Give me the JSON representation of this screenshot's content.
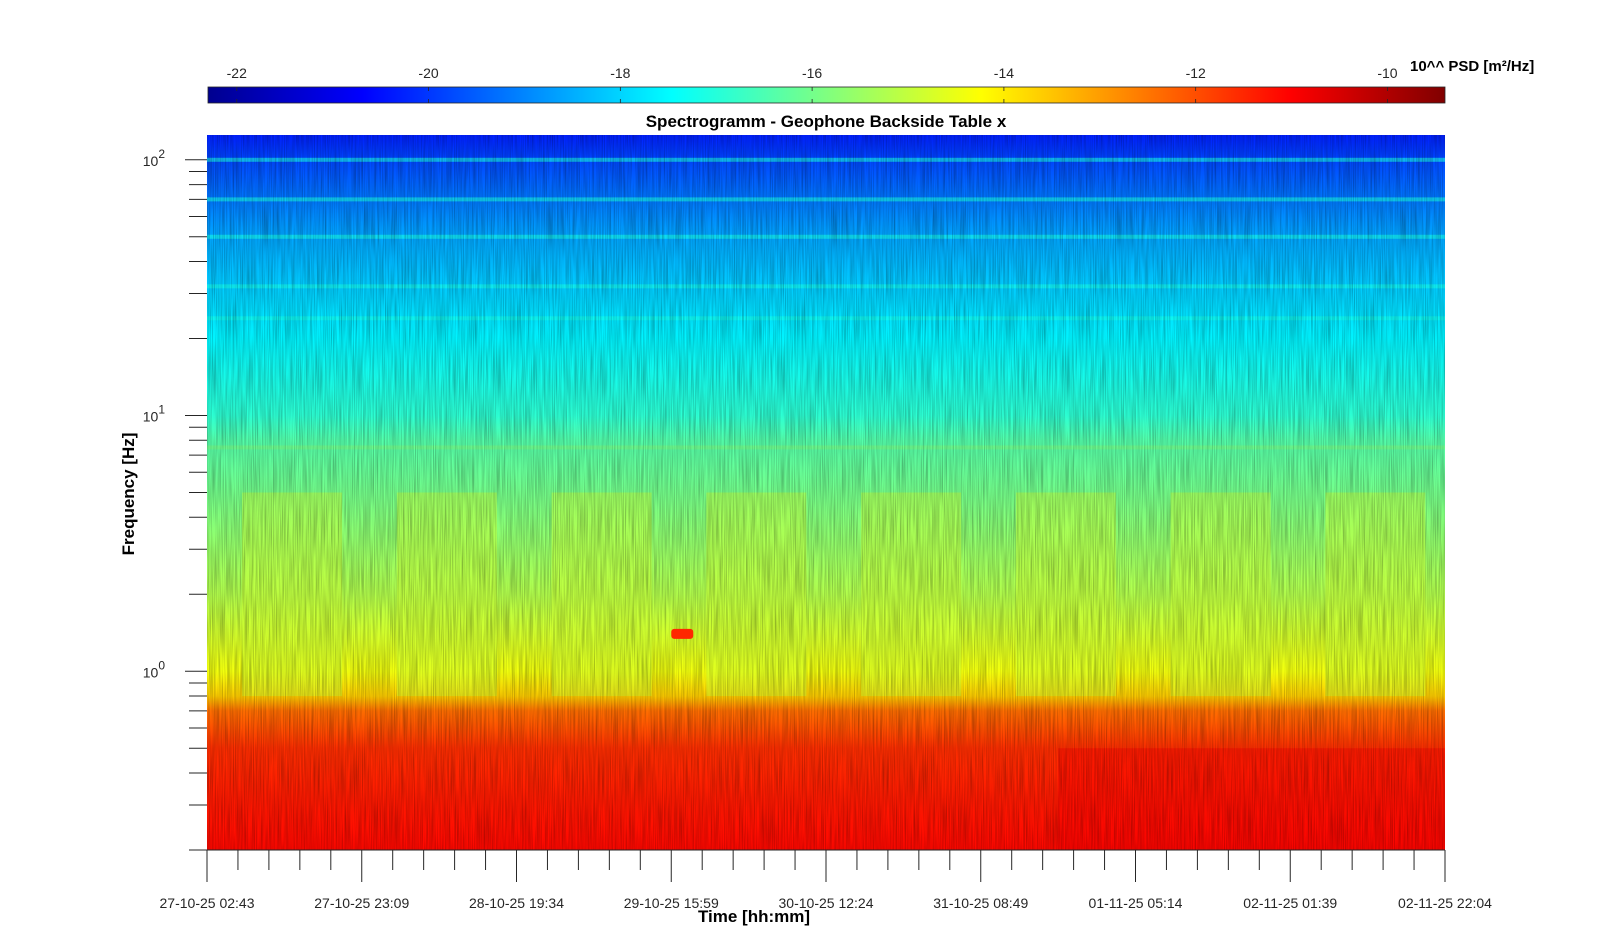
{
  "chart_data": {
    "type": "heatmap",
    "title": "Spectrogramm - Geophone Backside Table x",
    "xlabel": "Time [hh:mm]",
    "ylabel": "Frequency [Hz]",
    "x_tick_labels": [
      "27-10-25 02:43",
      "27-10-25 23:09",
      "28-10-25 19:34",
      "29-10-25 15:59",
      "30-10-25 12:24",
      "31-10-25 08:49",
      "01-11-25 05:14",
      "02-11-25 01:39",
      "02-11-25 22:04"
    ],
    "y_scale": "log",
    "y_tick_labels": [
      {
        "base": "10",
        "exp": "0",
        "value": 1
      },
      {
        "base": "10",
        "exp": "1",
        "value": 10
      },
      {
        "base": "10",
        "exp": "2",
        "value": 100
      }
    ],
    "ylim": [
      0.2,
      125
    ],
    "colorbar": {
      "label": "10^^ PSD [m²/Hz]",
      "tick_labels": [
        "-22",
        "-20",
        "-18",
        "-16",
        "-14",
        "-12",
        "-10"
      ],
      "tick_values": [
        -22,
        -20,
        -18,
        -16,
        -14,
        -12,
        -10
      ],
      "range": [
        -22.3,
        -9.4
      ],
      "colormap": "jet"
    },
    "levels_by_frequency": [
      {
        "freq": 0.2,
        "log_psd": -11.1
      },
      {
        "freq": 0.3,
        "log_psd": -11.3
      },
      {
        "freq": 0.5,
        "log_psd": -11.6
      },
      {
        "freq": 0.7,
        "log_psd": -12.4
      },
      {
        "freq": 0.8,
        "log_psd": -13.6
      },
      {
        "freq": 1.0,
        "log_psd": -14.4
      },
      {
        "freq": 2.0,
        "log_psd": -15.2
      },
      {
        "freq": 5.0,
        "log_psd": -16.0
      },
      {
        "freq": 8.0,
        "log_psd": -16.4
      },
      {
        "freq": 10.0,
        "log_psd": -16.9
      },
      {
        "freq": 20.0,
        "log_psd": -17.6
      },
      {
        "freq": 50.0,
        "log_psd": -18.6
      },
      {
        "freq": 100.0,
        "log_psd": -19.8
      },
      {
        "freq": 125.0,
        "log_psd": -20.3
      }
    ],
    "features": [
      {
        "name": "burst near 1.4 Hz",
        "time": "29-10-25 15:59",
        "freq": 1.4,
        "log_psd": -11.5
      },
      {
        "name": "line near 7.5 Hz",
        "freq": 7.5,
        "log_psd": -16.0
      },
      {
        "name": "line near 24 Hz",
        "freq": 24,
        "log_psd": -16.9
      }
    ],
    "grid": false
  }
}
